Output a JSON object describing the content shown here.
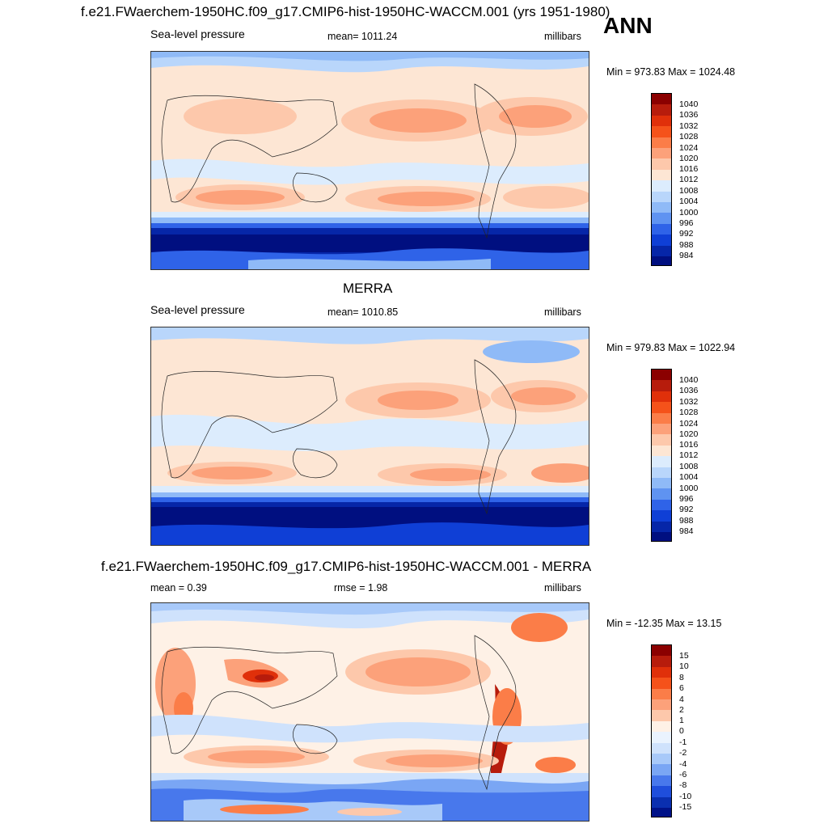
{
  "season": "ANN",
  "panels": [
    {
      "title": "f.e21.FWaerchem-1950HC.f09_g17.CMIP6-hist-1950HC-WACCM.001 (yrs 1951-1980)",
      "left_label": "Sea-level pressure",
      "center_label": "mean= 1011.24",
      "right_label": "millibars",
      "minmax": "Min = 973.83 Max = 1024.48",
      "colorbar": {
        "labels": [
          "1040",
          "1036",
          "1032",
          "1028",
          "1024",
          "1020",
          "1016",
          "1012",
          "1008",
          "1004",
          "1000",
          "996",
          "992",
          "988",
          "984"
        ],
        "colors": [
          "#8b0000",
          "#b71c0c",
          "#e0300a",
          "#f5521a",
          "#fb7d48",
          "#fca17a",
          "#fdc8ab",
          "#fde6d4",
          "#dcecfd",
          "#b9d6fb",
          "#8fbaf7",
          "#5f93f1",
          "#2f63e8",
          "#0f3fd6",
          "#0626a8",
          "#000f80"
        ]
      }
    },
    {
      "title": "MERRA",
      "left_label": "Sea-level pressure",
      "center_label": "mean= 1010.85",
      "right_label": "millibars",
      "minmax": "Min = 979.83 Max = 1022.94",
      "colorbar": {
        "labels": [
          "1040",
          "1036",
          "1032",
          "1028",
          "1024",
          "1020",
          "1016",
          "1012",
          "1008",
          "1004",
          "1000",
          "996",
          "992",
          "988",
          "984"
        ],
        "colors": [
          "#8b0000",
          "#b71c0c",
          "#e0300a",
          "#f5521a",
          "#fb7d48",
          "#fca17a",
          "#fdc8ab",
          "#fde6d4",
          "#dcecfd",
          "#b9d6fb",
          "#8fbaf7",
          "#5f93f1",
          "#2f63e8",
          "#0f3fd6",
          "#0626a8",
          "#000f80"
        ]
      }
    },
    {
      "title": "f.e21.FWaerchem-1950HC.f09_g17.CMIP6-hist-1950HC-WACCM.001 - MERRA",
      "left_label": "mean =   0.39",
      "center_label": "rmse =   1.98",
      "right_label": "millibars",
      "minmax": "Min = -12.35 Max =  13.15",
      "colorbar": {
        "labels": [
          "15",
          "10",
          "8",
          "6",
          "4",
          "2",
          "1",
          "0",
          "-1",
          "-2",
          "-4",
          "-6",
          "-8",
          "-10",
          "-15"
        ],
        "colors": [
          "#8b0000",
          "#b71c0c",
          "#e0300a",
          "#f5521a",
          "#fb7d48",
          "#fca17a",
          "#fdc8ab",
          "#fef1e6",
          "#eaf3fe",
          "#cfe2fc",
          "#a8c9f9",
          "#7aa6f4",
          "#4878ec",
          "#1f4edc",
          "#0a2fb0",
          "#001288"
        ]
      }
    }
  ]
}
